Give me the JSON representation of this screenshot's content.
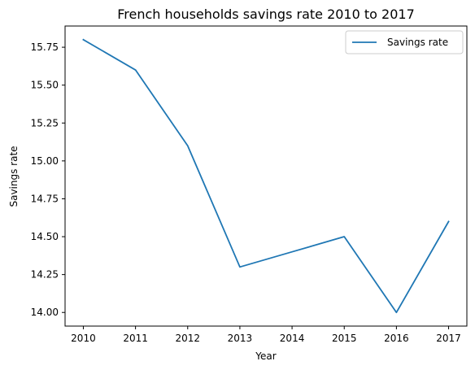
{
  "chart_data": {
    "type": "line",
    "title": "French households savings rate 2010 to 2017",
    "xlabel": "Year",
    "ylabel": "Savings rate",
    "x": [
      2010,
      2011,
      2012,
      2013,
      2014,
      2015,
      2016,
      2017
    ],
    "series": [
      {
        "name": "Savings rate",
        "values": [
          15.8,
          15.6,
          15.1,
          14.3,
          14.4,
          14.5,
          14.0,
          14.6
        ],
        "color": "#1f77b4"
      }
    ],
    "xticks": [
      "2010",
      "2011",
      "2012",
      "2013",
      "2014",
      "2015",
      "2016",
      "2017"
    ],
    "yticks": [
      "14.00",
      "14.25",
      "14.50",
      "14.75",
      "15.00",
      "15.25",
      "15.50",
      "15.75"
    ],
    "ytick_values": [
      14.0,
      14.25,
      14.5,
      14.75,
      15.0,
      15.25,
      15.5,
      15.75
    ],
    "xlim": [
      2009.65,
      2017.35
    ],
    "ylim": [
      13.91,
      15.89
    ],
    "grid": false,
    "legend_position": "top-right"
  }
}
